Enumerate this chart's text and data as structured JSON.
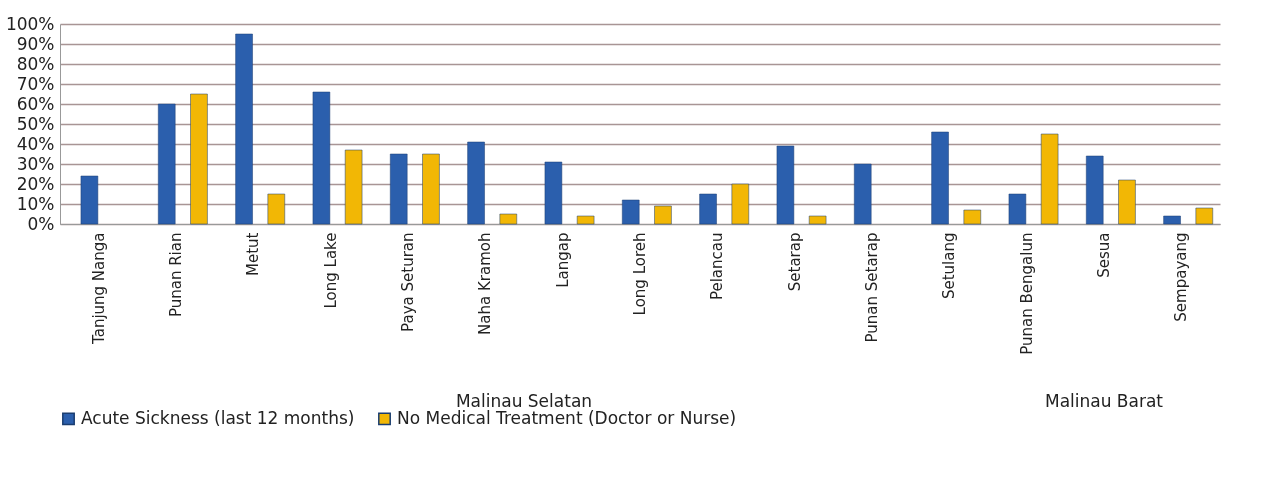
{
  "chart_data": {
    "type": "bar",
    "categories": [
      "Tanjung Nanga",
      "Punan Rian",
      "Metut",
      "Long Lake",
      "Paya Seturan",
      "Naha Kramoh",
      "Langap",
      "Long Loreh",
      "Pelancau",
      "Setarap",
      "Punan Setarap",
      "Setulang",
      "Punan Bengalun",
      "Sesua",
      "Sempayang"
    ],
    "series": [
      {
        "name": "Acute Sickness (last 12 months)",
        "color": "#2b5fad",
        "values": [
          24,
          60,
          95,
          66,
          35,
          41,
          31,
          12,
          15,
          39,
          30,
          46,
          15,
          34,
          4
        ]
      },
      {
        "name": "No Medical Treatment (Doctor or Nurse)",
        "color": "#f2b705",
        "values": [
          null,
          65,
          15,
          37,
          35,
          5,
          4,
          9,
          20,
          4,
          null,
          7,
          45,
          22,
          8
        ]
      }
    ],
    "ylim": [
      0,
      100
    ],
    "yticks": [
      {
        "value": 0,
        "label": "0%"
      },
      {
        "value": 10,
        "label": "10%"
      },
      {
        "value": 20,
        "label": "20%"
      },
      {
        "value": 30,
        "label": "30%"
      },
      {
        "value": 40,
        "label": "40%"
      },
      {
        "value": 50,
        "label": "50%"
      },
      {
        "value": 60,
        "label": "60%"
      },
      {
        "value": 70,
        "label": "70%"
      },
      {
        "value": 80,
        "label": "80%"
      },
      {
        "value": 90,
        "label": "90%"
      },
      {
        "value": 100,
        "label": "100%"
      }
    ],
    "grid": "y",
    "legend": "bottom",
    "annotations": [
      "Malinau Selatan",
      "Malinau Barat"
    ]
  }
}
